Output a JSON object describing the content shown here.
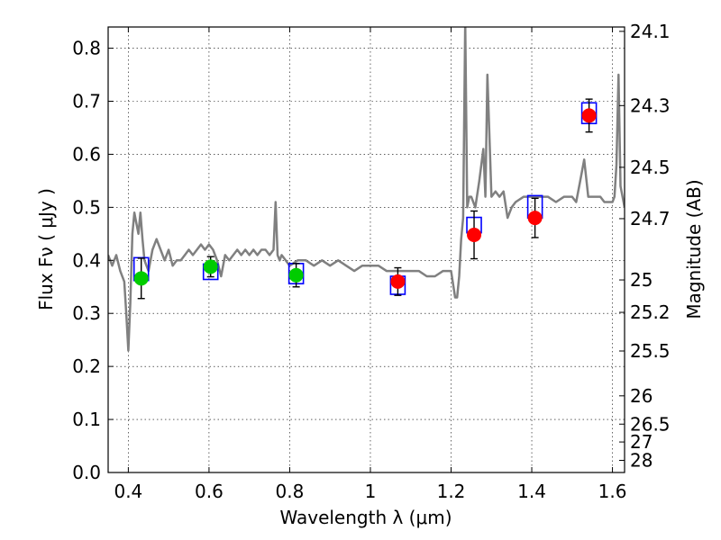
{
  "chart_data": {
    "type": "scatter",
    "title": "",
    "xlabel": "Wavelength  λ (μm)",
    "ylabel": "Flux  Fν  ( μJy )",
    "ylabel_right": "Magnitude (AB)",
    "xlim": [
      0.35,
      1.63
    ],
    "ylim": [
      0.0,
      0.84
    ],
    "grid": true,
    "x_ticks": [
      0.4,
      0.6,
      0.8,
      1.0,
      1.2,
      1.4,
      1.6
    ],
    "x_tick_labels": [
      "0.4",
      "0.6",
      "0.8",
      "1",
      "1.2",
      "1.4",
      "1.6"
    ],
    "y_ticks": [
      0.0,
      0.1,
      0.2,
      0.3,
      0.4,
      0.5,
      0.6,
      0.7,
      0.8
    ],
    "y_tick_labels": [
      "0.0",
      "0.1",
      "0.2",
      "0.3",
      "0.4",
      "0.5",
      "0.6",
      "0.7",
      "0.8"
    ],
    "right_ticks": [
      {
        "mag": 24.1,
        "label": "24.1"
      },
      {
        "mag": 24.3,
        "label": "24.3"
      },
      {
        "mag": 24.5,
        "label": "24.5"
      },
      {
        "mag": 24.7,
        "label": "24.7"
      },
      {
        "mag": 25.0,
        "label": "25"
      },
      {
        "mag": 25.2,
        "label": "25.2"
      },
      {
        "mag": 25.5,
        "label": "25.5"
      },
      {
        "mag": 26.0,
        "label": "26"
      },
      {
        "mag": 26.5,
        "label": "26.5"
      },
      {
        "mag": 27.0,
        "label": "27"
      },
      {
        "mag": 28.0,
        "label": "28"
      }
    ],
    "series": [
      {
        "kind": "spectrum",
        "color": "#808080",
        "x": [
          0.35,
          0.36,
          0.37,
          0.38,
          0.39,
          0.395,
          0.4,
          0.405,
          0.41,
          0.415,
          0.42,
          0.425,
          0.43,
          0.435,
          0.44,
          0.45,
          0.46,
          0.47,
          0.48,
          0.49,
          0.5,
          0.51,
          0.52,
          0.53,
          0.54,
          0.55,
          0.56,
          0.57,
          0.58,
          0.59,
          0.6,
          0.61,
          0.62,
          0.63,
          0.64,
          0.65,
          0.66,
          0.67,
          0.68,
          0.69,
          0.7,
          0.71,
          0.72,
          0.73,
          0.74,
          0.75,
          0.76,
          0.765,
          0.77,
          0.775,
          0.78,
          0.79,
          0.8,
          0.82,
          0.84,
          0.86,
          0.88,
          0.9,
          0.92,
          0.94,
          0.96,
          0.98,
          1.0,
          1.02,
          1.04,
          1.06,
          1.08,
          1.1,
          1.12,
          1.14,
          1.16,
          1.18,
          1.2,
          1.21,
          1.215,
          1.22,
          1.225,
          1.23,
          1.235,
          1.24,
          1.245,
          1.25,
          1.26,
          1.27,
          1.28,
          1.285,
          1.29,
          1.3,
          1.31,
          1.32,
          1.33,
          1.34,
          1.35,
          1.36,
          1.38,
          1.4,
          1.42,
          1.44,
          1.46,
          1.48,
          1.5,
          1.51,
          1.52,
          1.53,
          1.54,
          1.55,
          1.56,
          1.57,
          1.58,
          1.59,
          1.6,
          1.605,
          1.61,
          1.615,
          1.62,
          1.63
        ],
        "y": [
          0.41,
          0.39,
          0.41,
          0.38,
          0.36,
          0.3,
          0.23,
          0.32,
          0.45,
          0.49,
          0.47,
          0.45,
          0.49,
          0.44,
          0.4,
          0.38,
          0.42,
          0.44,
          0.42,
          0.4,
          0.42,
          0.39,
          0.4,
          0.4,
          0.41,
          0.42,
          0.41,
          0.42,
          0.43,
          0.42,
          0.43,
          0.42,
          0.4,
          0.37,
          0.41,
          0.4,
          0.41,
          0.42,
          0.41,
          0.42,
          0.41,
          0.42,
          0.41,
          0.42,
          0.42,
          0.41,
          0.42,
          0.51,
          0.41,
          0.4,
          0.41,
          0.4,
          0.39,
          0.4,
          0.4,
          0.39,
          0.4,
          0.39,
          0.4,
          0.39,
          0.38,
          0.39,
          0.39,
          0.39,
          0.38,
          0.38,
          0.38,
          0.38,
          0.38,
          0.37,
          0.37,
          0.38,
          0.38,
          0.33,
          0.33,
          0.37,
          0.44,
          0.48,
          0.85,
          0.5,
          0.52,
          0.52,
          0.5,
          0.55,
          0.61,
          0.52,
          0.75,
          0.52,
          0.53,
          0.52,
          0.53,
          0.48,
          0.5,
          0.51,
          0.52,
          0.52,
          0.52,
          0.52,
          0.51,
          0.52,
          0.52,
          0.51,
          0.55,
          0.59,
          0.52,
          0.52,
          0.52,
          0.52,
          0.51,
          0.51,
          0.51,
          0.52,
          0.58,
          0.75,
          0.54,
          0.5
        ]
      },
      {
        "kind": "model-boxes",
        "color": "#0000ff",
        "x": [
          0.432,
          0.604,
          0.816,
          1.068,
          1.257,
          1.408,
          1.542
        ],
        "y_low": [
          0.362,
          0.364,
          0.356,
          0.336,
          0.452,
          0.48,
          0.658
        ],
        "y_high": [
          0.405,
          0.393,
          0.394,
          0.37,
          0.481,
          0.522,
          0.697
        ]
      },
      {
        "kind": "detections",
        "color": "#00cc00",
        "x": [
          0.432,
          0.604,
          0.816
        ],
        "y": [
          0.366,
          0.388,
          0.372
        ],
        "err": [
          0.038,
          0.019,
          0.022
        ]
      },
      {
        "kind": "detections",
        "color": "#ff0000",
        "x": [
          1.068,
          1.257,
          1.408,
          1.542
        ],
        "y": [
          0.36,
          0.448,
          0.48,
          0.673
        ],
        "err": [
          0.026,
          0.045,
          0.037,
          0.031
        ]
      }
    ]
  }
}
